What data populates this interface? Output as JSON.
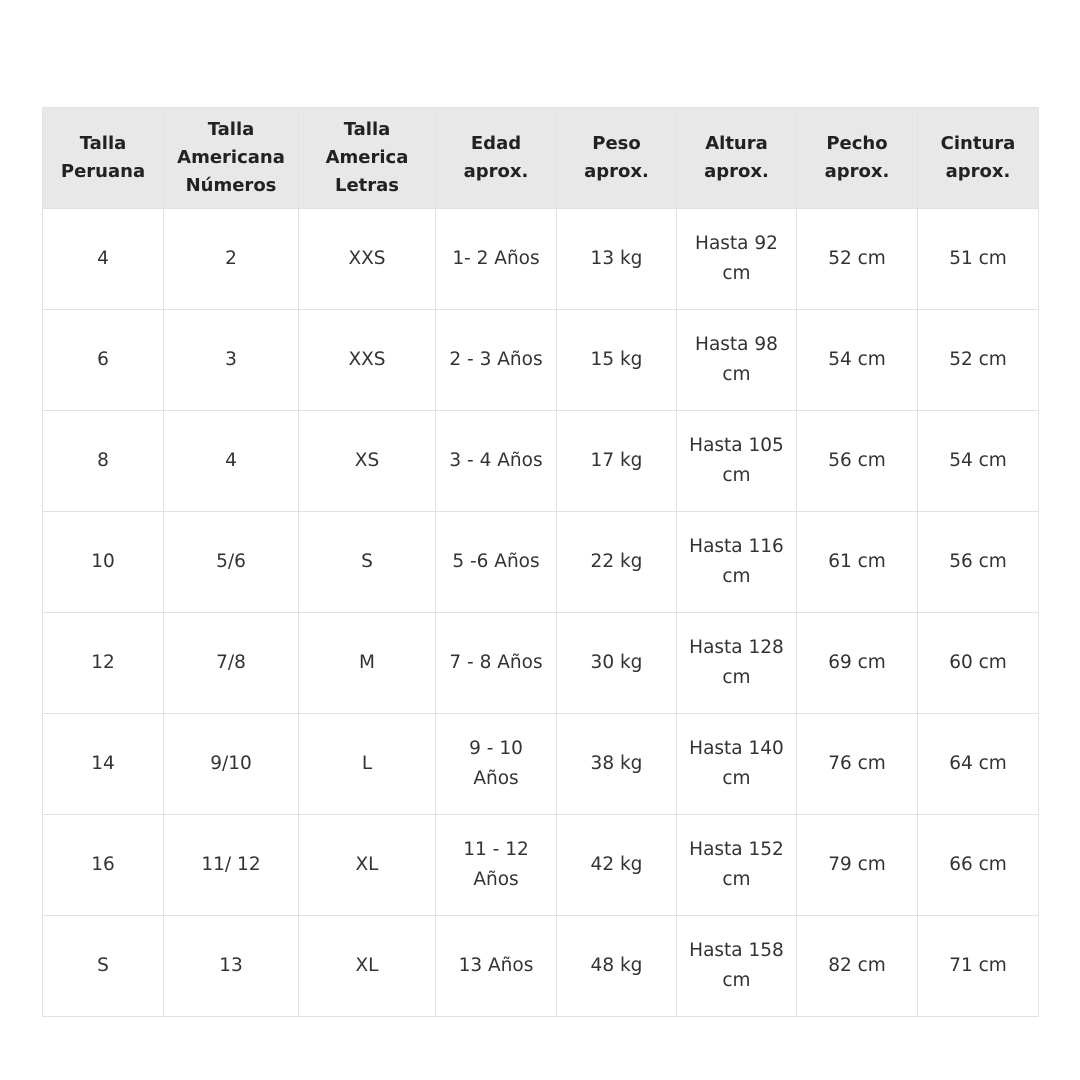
{
  "headers": [
    "Talla\nPeruana",
    "Talla\nAmericana\nNúmeros",
    "Talla\nAmerica\nLetras",
    "Edad\naprox.",
    "Peso\naprox.",
    "Altura\naprox.",
    "Pecho\naprox.",
    "Cintura\naprox."
  ],
  "rows": [
    [
      "4",
      "2",
      "XXS",
      "1- 2 Años",
      "13 kg",
      "Hasta 92\ncm",
      "52 cm",
      "51 cm"
    ],
    [
      "6",
      "3",
      "XXS",
      "2 - 3 Años",
      "15 kg",
      "Hasta 98\ncm",
      "54 cm",
      "52 cm"
    ],
    [
      "8",
      "4",
      "XS",
      "3 - 4 Años",
      "17 kg",
      "Hasta 105\ncm",
      "56 cm",
      "54 cm"
    ],
    [
      "10",
      "5/6",
      "S",
      "5 -6 Años",
      "22 kg",
      "Hasta 116\ncm",
      "61 cm",
      "56 cm"
    ],
    [
      "12",
      "7/8",
      "M",
      "7 - 8 Años",
      "30 kg",
      "Hasta 128\ncm",
      "69 cm",
      "60 cm"
    ],
    [
      "14",
      "9/10",
      "L",
      "9 - 10\nAños",
      "38 kg",
      "Hasta 140\ncm",
      "76 cm",
      "64 cm"
    ],
    [
      "16",
      "11/ 12",
      "XL",
      "11 - 12\nAños",
      "42 kg",
      "Hasta 152\ncm",
      "79 cm",
      "66 cm"
    ],
    [
      "S",
      "13",
      "XL",
      "13 Años",
      "48 kg",
      "Hasta 158\ncm",
      "82 cm",
      "71 cm"
    ]
  ]
}
